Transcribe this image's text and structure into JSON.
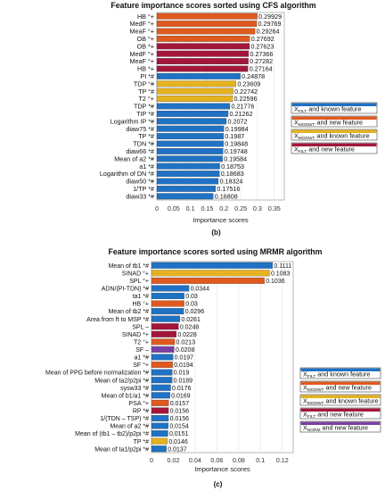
{
  "chart_data": [
    {
      "type": "bar",
      "orientation": "horizontal",
      "title": "Feature importance scores sorted using CFS algorithm",
      "xlabel": "Importance scores",
      "ylabel": "",
      "xlim": [
        0,
        0.38
      ],
      "xticks": [
        "0",
        "0.05",
        "0.1",
        "0.15",
        "0.2",
        "0.25",
        "0.3",
        "0.35"
      ],
      "grid": true,
      "legend_position": "right",
      "panel_label": "(b)",
      "categories": [
        "HB °+",
        "MedF °+",
        "MeaF °+",
        "OB °+",
        "OB *+",
        "MedF °+",
        "MeaF °+",
        "HB *+",
        "PI *#",
        "TDP °#",
        "TP °#",
        "T2 °+",
        "TDP *#",
        "TIP *#",
        "Logarithm IP *#",
        "diaw75 *#",
        "TP *#",
        "TDN *#",
        "diaw66 *#",
        "Mean of a2 *#",
        "a1 *#",
        "Logarithm of DN *#",
        "diaw50 *#",
        "1/TP *#",
        "diaw33 *#"
      ],
      "values": [
        0.29929,
        0.29769,
        0.29264,
        0.27692,
        0.27623,
        0.27366,
        0.27282,
        0.27164,
        0.24878,
        0.23609,
        0.22742,
        0.22596,
        0.21776,
        0.21262,
        0.2072,
        0.19984,
        0.1987,
        0.19848,
        0.19748,
        0.19584,
        0.18753,
        0.18683,
        0.18324,
        0.17516,
        0.16808
      ],
      "value_labels": [
        "0.29929",
        "0.29769",
        "0.29264",
        "0.27692",
        "0.27623",
        "0.27366",
        "0.27282",
        "0.27164",
        "0.24878",
        "0.23609",
        "0.22742",
        "0.22596",
        "0.21776",
        "0.21262",
        "0.2072",
        "0.19984",
        "0.1987",
        "0.19848",
        "0.19748",
        "0.19584",
        "0.18753",
        "0.18683",
        "0.18324",
        "0.17516",
        "0.16808"
      ],
      "groups": [
        "mt",
        "mt",
        "mt",
        "mt",
        "fn",
        "fn",
        "fn",
        "fn",
        "fk",
        "mk",
        "mk",
        "mk",
        "fk",
        "fk",
        "fk",
        "fk",
        "fk",
        "fk",
        "fk",
        "fk",
        "fk",
        "fk",
        "fk",
        "fk",
        "fk"
      ],
      "legend": [
        {
          "key": "fk",
          "main": "X",
          "sub": "FILT",
          "rest": " and known feature",
          "color": "#1f72c4"
        },
        {
          "key": "mt",
          "main": "X",
          "sub": "MODWT",
          "rest": " and new feature",
          "color": "#e05a1f"
        },
        {
          "key": "mk",
          "main": "X",
          "sub": "MODWT",
          "rest": " and known feature",
          "color": "#e5b220"
        },
        {
          "key": "fn",
          "main": "X",
          "sub": "FILT",
          "rest": " and new feature",
          "color": "#a3163a"
        }
      ]
    },
    {
      "type": "bar",
      "orientation": "horizontal",
      "title": "Feature importance scores sorted using MRMR algorithm",
      "xlabel": "Importance scores",
      "ylabel": "",
      "xlim": [
        0,
        0.13
      ],
      "xticks": [
        "0",
        "0.02",
        "0.04",
        "0.06",
        "0.08",
        "0.1",
        "0.12"
      ],
      "grid": true,
      "legend_position": "right",
      "panel_label": "(c)",
      "categories": [
        "Mean of tb1 *#",
        "SINAD °+",
        "SPL °+",
        "ADN/(PI-TDN) *#",
        "ta1 *#",
        "HB °+",
        "Mean of tb2 *#",
        "Area from ft to MSP *#",
        "SPL –",
        "SINAD *+",
        "T2 °+",
        "SF –",
        "a1 *#",
        "SF °+",
        "Mean of PPG before normalization *#",
        "Mean of ta2/p2pi *#",
        "sysw33 *#",
        "Mean of b1/a1 *#",
        "PSA °+",
        "RP *#",
        "1/(TDN – TSP) *#",
        "Mean of a2 *#",
        "Mean of (tb1 – tb2)/p2pi *#",
        "TP *#",
        "Mean of ta1/p2pi *#"
      ],
      "values": [
        0.1111,
        0.1083,
        0.1036,
        0.0344,
        0.03,
        0.03,
        0.0296,
        0.0261,
        0.0248,
        0.0228,
        0.0213,
        0.0208,
        0.0197,
        0.0194,
        0.019,
        0.0189,
        0.0176,
        0.0169,
        0.0157,
        0.0156,
        0.0156,
        0.0154,
        0.0151,
        0.0146,
        0.0137
      ],
      "value_labels": [
        "0.1111",
        "0.1083",
        "0.1036",
        "0.0344",
        "0.03",
        "0.03",
        "0.0296",
        "0.0261",
        "0.0248",
        "0.0228",
        "0.0213",
        "0.0208",
        "0.0197",
        "0.0194",
        "0.019",
        "0.0189",
        "0.0176",
        "0.0169",
        "0.0157",
        "0.0156",
        "0.0156",
        "0.0154",
        "0.0151",
        "0.0146",
        "0.0137"
      ],
      "groups": [
        "fk",
        "mk",
        "mt",
        "fk",
        "fk",
        "mt",
        "fk",
        "fk",
        "fn",
        "fn",
        "mt",
        "no",
        "fk",
        "mt",
        "fk",
        "fk",
        "fk",
        "fk",
        "mt",
        "fn",
        "fk",
        "fk",
        "fk",
        "mk",
        "fk"
      ],
      "legend": [
        {
          "key": "fk",
          "main": "X",
          "sub": "FILT",
          "rest": " and known feature",
          "color": "#1f72c4"
        },
        {
          "key": "mt",
          "main": "X",
          "sub": "MODWT",
          "rest": " and new feature",
          "color": "#e05a1f"
        },
        {
          "key": "mk",
          "main": "X",
          "sub": "MODWT",
          "rest": " and known feature",
          "color": "#e5b220"
        },
        {
          "key": "fn",
          "main": "X",
          "sub": "FILT",
          "rest": " and new feature",
          "color": "#a3163a"
        },
        {
          "key": "no",
          "main": "X",
          "sub": "NORM",
          "rest": " and new feature",
          "color": "#7b3fa6"
        }
      ]
    }
  ]
}
